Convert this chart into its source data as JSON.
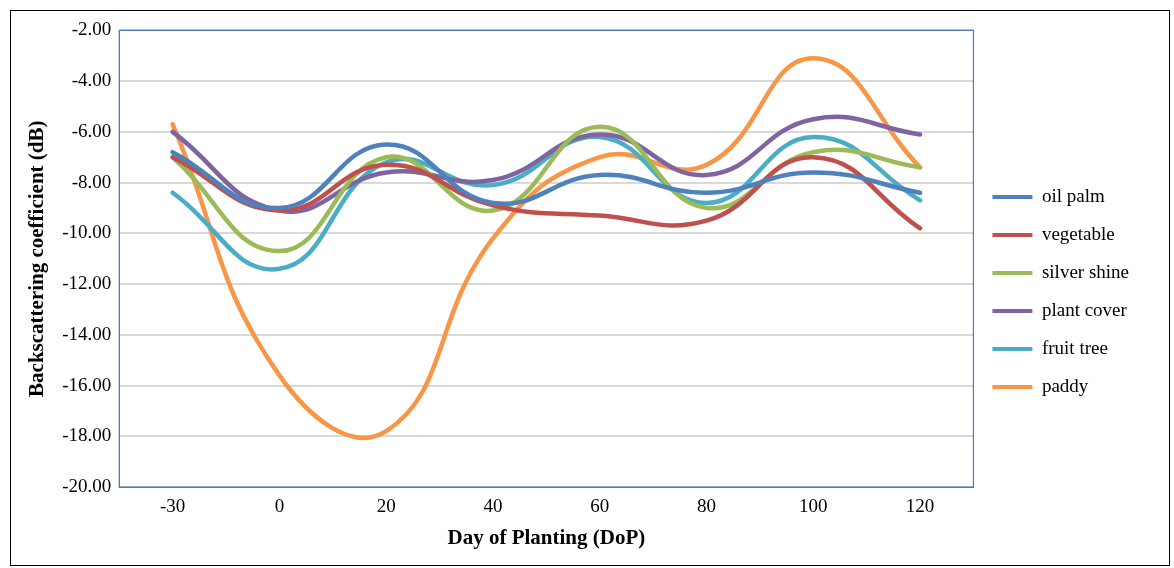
{
  "chart_data": {
    "type": "line",
    "xlabel": "Day of Planting (DoP)",
    "ylabel": "Backscattering coefficient (dB)",
    "categories": [
      "-30",
      "0",
      "20",
      "40",
      "60",
      "80",
      "100",
      "120"
    ],
    "series": [
      {
        "name": "oil palm",
        "color": "#4f81bd",
        "values": [
          -6.8,
          -9.0,
          -6.5,
          -8.8,
          -7.7,
          -8.4,
          -7.6,
          -8.4
        ]
      },
      {
        "name": "vegetable",
        "color": "#c0504d",
        "values": [
          -7.0,
          -9.1,
          -7.3,
          -8.9,
          -9.3,
          -9.5,
          -7.0,
          -9.8
        ]
      },
      {
        "name": "silver shine",
        "color": "#9bbb59",
        "values": [
          -7.0,
          -10.7,
          -7.0,
          -9.1,
          -5.8,
          -9.0,
          -6.8,
          -7.4
        ]
      },
      {
        "name": "plant cover",
        "color": "#8064a2",
        "values": [
          -6.0,
          -9.1,
          -7.6,
          -7.9,
          -6.1,
          -7.7,
          -5.5,
          -6.1
        ]
      },
      {
        "name": "fruit tree",
        "color": "#4bacc6",
        "values": [
          -8.4,
          -11.4,
          -7.2,
          -8.1,
          -6.2,
          -8.8,
          -6.2,
          -8.7
        ]
      },
      {
        "name": "paddy",
        "color": "#f79646",
        "values": [
          -5.7,
          -15.6,
          -17.8,
          -10.2,
          -7.0,
          -7.3,
          -3.1,
          -7.4
        ]
      }
    ],
    "ylim": [
      -20,
      -2
    ],
    "yticks": [
      {
        "value": -20,
        "label": "-20.00"
      },
      {
        "value": -18,
        "label": "-18.00"
      },
      {
        "value": -16,
        "label": "-16.00"
      },
      {
        "value": -14,
        "label": "-14.00"
      },
      {
        "value": -12,
        "label": "-12.00"
      },
      {
        "value": -10,
        "label": "-10.00"
      },
      {
        "value": -8,
        "label": "-8.00"
      },
      {
        "value": -6,
        "label": "-6.00"
      },
      {
        "value": -4,
        "label": "-4.00"
      },
      {
        "value": -2,
        "label": "-2.00"
      }
    ],
    "grid": "y",
    "legend": "right",
    "marker": "none",
    "line_style": "solid"
  }
}
